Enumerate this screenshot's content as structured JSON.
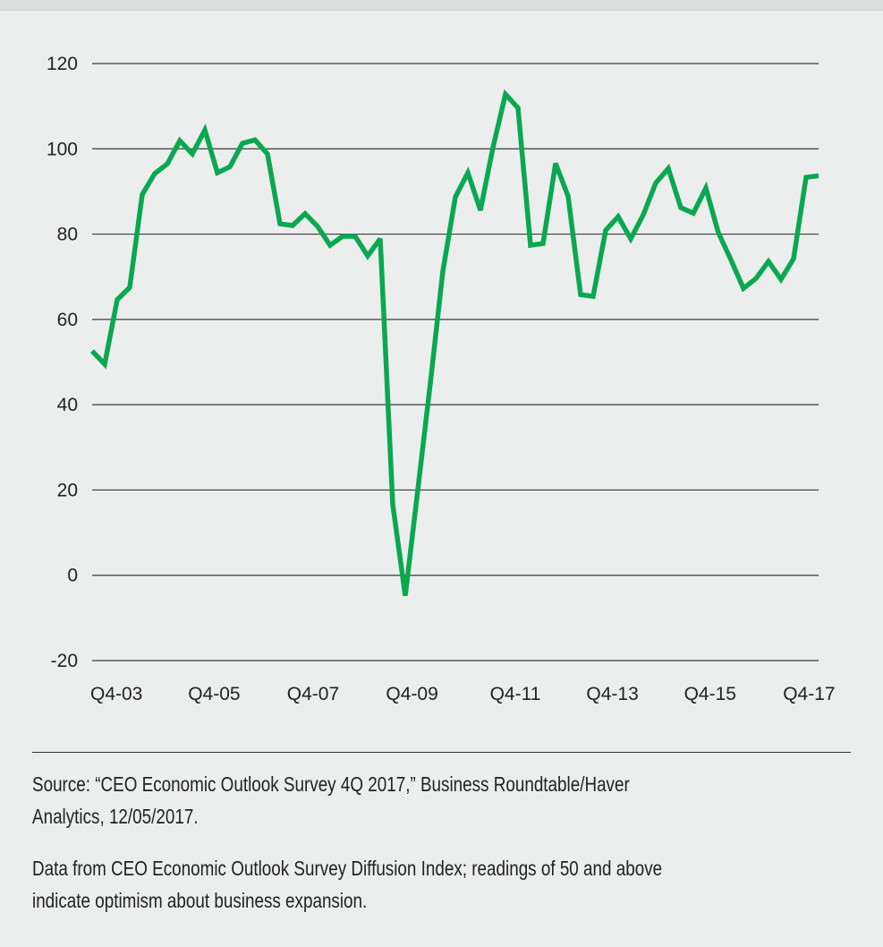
{
  "chart_data": {
    "type": "line",
    "title": "",
    "xlabel": "",
    "ylabel": "",
    "ylim": [
      -20,
      120
    ],
    "yticks": [
      120,
      100,
      80,
      60,
      40,
      20,
      0,
      -20
    ],
    "grid": true,
    "x_tick_labels": [
      {
        "label": "Q4-03",
        "index": 0
      },
      {
        "label": "Q4-05",
        "index": 7.8
      },
      {
        "label": "Q4-07",
        "index": 15.7
      },
      {
        "label": "Q4-09",
        "index": 23.6
      },
      {
        "label": "Q4-11",
        "index": 31.9
      },
      {
        "label": "Q4-13",
        "index": 39.6
      },
      {
        "label": "Q4-15",
        "index": 47.4
      },
      {
        "label": "Q4-17",
        "index": 55.3
      }
    ],
    "series": [
      {
        "name": "CEO Economic Outlook Survey Diffusion Index",
        "color": "#0aa84f",
        "values": [
          52.6,
          49.5,
          64.6,
          67.5,
          89.3,
          94.2,
          96.5,
          101.9,
          98.8,
          104.4,
          94.4,
          95.8,
          101.3,
          102.1,
          98.8,
          82.4,
          82.0,
          84.8,
          81.8,
          77.4,
          79.5,
          79.5,
          74.9,
          78.9,
          16.6,
          -4.8,
          20.0,
          45.0,
          71.3,
          88.7,
          94.4,
          85.6,
          100.3,
          112.8,
          109.6,
          77.4,
          77.8,
          96.6,
          88.9,
          65.8,
          65.4,
          80.9,
          84.1,
          78.9,
          84.5,
          92.0,
          95.4,
          86.2,
          84.9,
          90.8,
          80.3,
          74.0,
          67.3,
          69.6,
          73.6,
          69.4,
          74.2,
          93.3,
          93.7
        ]
      }
    ]
  },
  "footer": {
    "source_line1": "Source: “CEO Economic Outlook Survey 4Q 2017,” Business Roundtable/Haver",
    "source_line2": "Analytics, 12/05/2017.",
    "note_line1": "Data from CEO Economic Outlook Survey Diffusion Index; readings of 50 and above",
    "note_line2": "indicate optimism about business expansion."
  }
}
